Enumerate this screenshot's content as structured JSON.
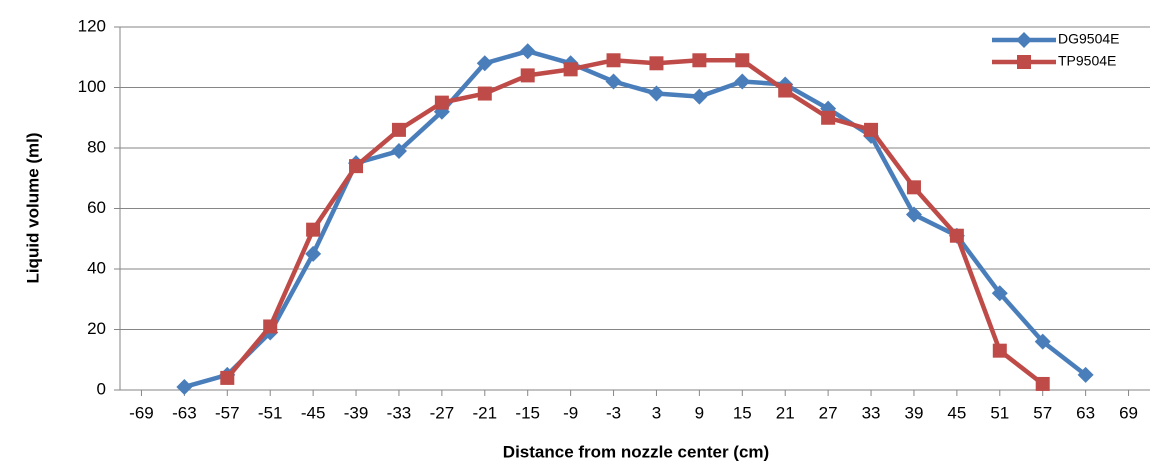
{
  "chart_data": {
    "type": "line",
    "x_label": "Distance from nozzle center (cm)",
    "y_label": "Liquid volume (ml)",
    "x": [
      -69,
      -63,
      -57,
      -51,
      -45,
      -39,
      -33,
      -27,
      -21,
      -15,
      -9,
      -3,
      3,
      9,
      15,
      21,
      27,
      33,
      39,
      45,
      51,
      57,
      63,
      69
    ],
    "xlim": [
      -72,
      72
    ],
    "xticks": [
      -69,
      -63,
      -57,
      -51,
      -45,
      -39,
      -33,
      -27,
      -21,
      -15,
      -9,
      -3,
      3,
      9,
      15,
      21,
      27,
      33,
      39,
      45,
      51,
      57,
      63,
      69
    ],
    "ylim": [
      0,
      120
    ],
    "yticks": [
      0,
      20,
      40,
      60,
      80,
      100,
      120
    ],
    "grid": true,
    "legend": "upper right",
    "series": [
      {
        "name": "DG9504E",
        "color": "#4a7ebb",
        "marker": "diamond",
        "values": [
          null,
          1,
          5,
          19,
          45,
          75,
          79,
          92,
          108,
          112,
          108,
          102,
          98,
          97,
          102,
          101,
          93,
          84,
          58,
          51,
          32,
          16,
          5,
          null
        ]
      },
      {
        "name": "TP9504E",
        "color": "#be4b48",
        "marker": "square",
        "values": [
          null,
          null,
          4,
          21,
          53,
          74,
          86,
          95,
          98,
          104,
          106,
          109,
          108,
          109,
          109,
          99,
          90,
          86,
          67,
          51,
          13,
          2,
          null,
          null
        ]
      }
    ]
  }
}
